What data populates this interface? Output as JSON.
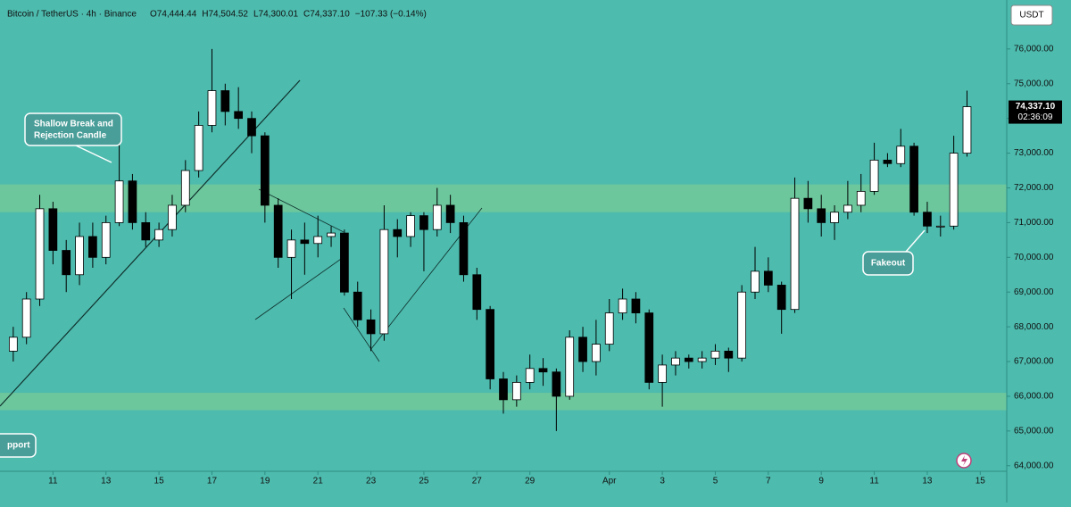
{
  "chart_data": {
    "type": "candlestick",
    "title": "Bitcoin / TetherUS · 4h · Binance",
    "ohlc_labels": [
      "O74,444.44",
      "H74,504.52",
      "L74,300.01",
      "C74,337.10",
      "−107.33 (−0.14%)"
    ],
    "currency": "USDT",
    "last_price_label": "74,337.10",
    "countdown": "02:36:09",
    "annotations": [
      [
        "Shallow Break and",
        "Rejection Candle"
      ],
      [
        "Fakeout"
      ],
      [
        "pport"
      ]
    ],
    "up_color": "#ffffff",
    "down_color": "#000000",
    "zone_color": "#72c99a",
    "zones": [
      [
        71300,
        72100
      ],
      [
        65600,
        66100
      ]
    ],
    "xlim": [
      9,
      47
    ],
    "ylim": [
      63840,
      77410
    ],
    "xticks": [
      11,
      13,
      15,
      17,
      19,
      21,
      23,
      25,
      27,
      29,
      {
        "value": 32,
        "label": "Apr"
      },
      {
        "value": 34,
        "label": "3"
      },
      {
        "value": 36,
        "label": "5"
      },
      {
        "value": 38,
        "label": "7"
      },
      {
        "value": 40,
        "label": "9"
      },
      {
        "value": 42,
        "label": "11"
      },
      {
        "value": 44,
        "label": "13"
      },
      {
        "value": 46,
        "label": "15"
      }
    ],
    "yticks": [
      {
        "value": 64000,
        "label": "64,000.00"
      },
      {
        "value": 65000,
        "label": "65,000.00"
      },
      {
        "value": 66000,
        "label": "66,000.00"
      },
      {
        "value": 67000,
        "label": "67,000.00"
      },
      {
        "value": 68000,
        "label": "68,000.00"
      },
      {
        "value": 69000,
        "label": "69,000.00"
      },
      {
        "value": 70000,
        "label": "70,000.00"
      },
      {
        "value": 71000,
        "label": "71,000.00"
      },
      {
        "value": 72000,
        "label": "72,000.00"
      },
      {
        "value": 73000,
        "label": "73,000.00"
      },
      {
        "value": 74000,
        "label": "74,000.00"
      },
      {
        "value": 75000,
        "label": "75,000.00"
      },
      {
        "value": 76000,
        "label": "76,000.00"
      }
    ],
    "x": [
      9.5,
      10,
      10.5,
      11,
      11.5,
      12,
      12.5,
      13,
      13.5,
      14,
      14.5,
      15,
      15.5,
      16,
      16.5,
      17,
      17.5,
      18,
      18.5,
      19,
      19.5,
      20,
      20.5,
      21,
      21.5,
      22,
      22.5,
      23,
      23.5,
      24,
      24.5,
      25,
      25.5,
      26,
      26.5,
      27,
      27.5,
      28,
      28.5,
      29,
      29.5,
      30,
      30.5,
      31,
      31.5,
      32,
      32.5,
      33,
      33.5,
      34,
      34.5,
      35,
      35.5,
      36,
      36.5,
      37,
      37.5,
      38,
      38.5,
      39,
      39.5,
      40,
      40.5,
      41,
      41.5,
      42,
      42.5,
      43,
      43.5,
      44,
      44.5,
      45,
      45.5
    ],
    "open": [
      67300,
      67700,
      68800,
      71400,
      70200,
      69500,
      70600,
      70000,
      71000,
      72200,
      71000,
      70500,
      70800,
      71500,
      72500,
      73800,
      74800,
      74200,
      74000,
      73500,
      71500,
      70000,
      70500,
      70400,
      70600,
      70700,
      69000,
      68200,
      67800,
      70800,
      70600,
      71200,
      70800,
      71500,
      71000,
      69500,
      68500,
      66500,
      65900,
      66400,
      66800,
      66700,
      66000,
      67700,
      67000,
      67500,
      68400,
      68800,
      68400,
      66400,
      66900,
      67100,
      67000,
      67100,
      67300,
      67100,
      69000,
      69600,
      69200,
      68500,
      71700,
      71400,
      71000,
      71300,
      71500,
      71900,
      72800,
      72700,
      73200,
      71300,
      70900,
      70900,
      73000
    ],
    "high": [
      68000,
      69000,
      71800,
      71600,
      70500,
      71000,
      71000,
      71200,
      73500,
      72400,
      71300,
      71000,
      71800,
      72800,
      74200,
      76000,
      75000,
      74900,
      74200,
      73600,
      71700,
      70800,
      71000,
      71200,
      70900,
      70800,
      69300,
      68500,
      71500,
      71100,
      71300,
      71300,
      72000,
      71800,
      71200,
      69700,
      68600,
      66700,
      66600,
      67200,
      67100,
      66800,
      67900,
      68000,
      68200,
      68800,
      69100,
      69000,
      68500,
      67200,
      67300,
      67200,
      67300,
      67500,
      67400,
      69200,
      70300,
      70000,
      69300,
      72300,
      72200,
      71800,
      71500,
      72200,
      72400,
      73300,
      73000,
      73700,
      73300,
      71600,
      71200,
      73500,
      74800
    ],
    "low": [
      67000,
      67500,
      68600,
      69800,
      69000,
      69200,
      69700,
      69800,
      70900,
      70800,
      70300,
      70300,
      70600,
      71300,
      72300,
      73600,
      73800,
      73700,
      73000,
      71000,
      69700,
      68800,
      69500,
      70000,
      70300,
      68900,
      68000,
      67300,
      67600,
      70000,
      70300,
      69600,
      70600,
      70700,
      69300,
      68200,
      66200,
      65500,
      65700,
      66200,
      66300,
      65000,
      65900,
      66700,
      66600,
      67300,
      68200,
      68100,
      66200,
      65700,
      66600,
      66800,
      66800,
      66900,
      66700,
      67000,
      68800,
      69000,
      67800,
      68400,
      71000,
      70600,
      70500,
      71100,
      71300,
      71800,
      72600,
      72600,
      71200,
      70700,
      70600,
      70800,
      72900
    ],
    "close": [
      67700,
      68800,
      71400,
      70200,
      69500,
      70600,
      70000,
      71000,
      72200,
      71000,
      70500,
      70800,
      71500,
      72500,
      73800,
      74800,
      74200,
      74000,
      73500,
      71500,
      70000,
      70500,
      70400,
      70600,
      70700,
      69000,
      68200,
      67800,
      70800,
      70600,
      71200,
      70800,
      71500,
      71000,
      69500,
      68500,
      66500,
      65900,
      66400,
      66800,
      66700,
      66000,
      67700,
      67000,
      67500,
      68400,
      68800,
      68400,
      66400,
      66900,
      67100,
      67000,
      67100,
      67300,
      67100,
      69000,
      69600,
      69200,
      68500,
      71700,
      71400,
      71000,
      71300,
      71500,
      71900,
      72800,
      72700,
      73200,
      71300,
      70900,
      70900,
      73000,
      74337.1
    ]
  }
}
